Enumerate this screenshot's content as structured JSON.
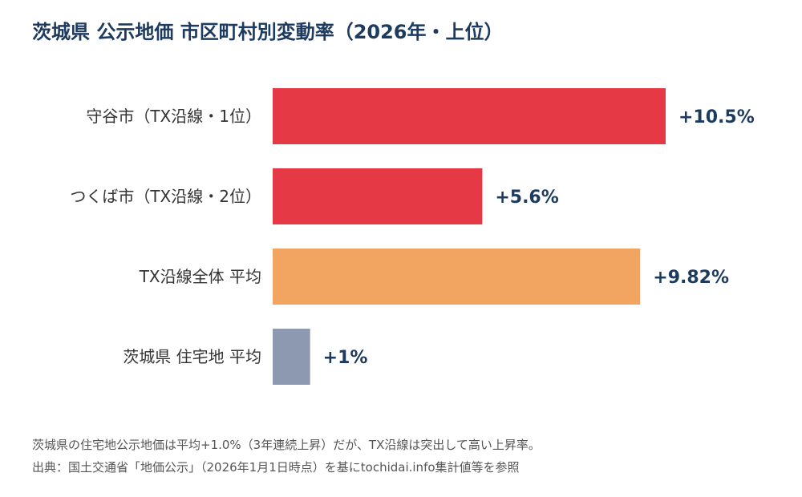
{
  "title": "茨城県 公示地価 市区町村別変動率（2026年・上位）",
  "chart_data": {
    "type": "bar",
    "orientation": "horizontal",
    "categories": [
      "守谷市（TX沿線・1位）",
      "つくば市（TX沿線・2位）",
      "TX沿線全体 平均",
      "茨城県 住宅地 平均"
    ],
    "values": [
      10.5,
      5.6,
      9.82,
      1.0
    ],
    "value_labels": [
      "+10.5%",
      "+5.6%",
      "+9.82%",
      "+1%"
    ],
    "bar_colors": [
      "#e63946",
      "#e63946",
      "#f2a461",
      "#8d99b0"
    ],
    "value_label_color": "#1d3a5f",
    "axis_visible": false,
    "grid": false
  },
  "footnotes": [
    "茨城県の住宅地公示地価は平均+1.0%（3年連続上昇）だが、TX沿線は突出して高い上昇率。",
    "出典：国土交通省「地価公示」（2026年1月1日時点）を基にtochidai.info集計値等を参照"
  ]
}
